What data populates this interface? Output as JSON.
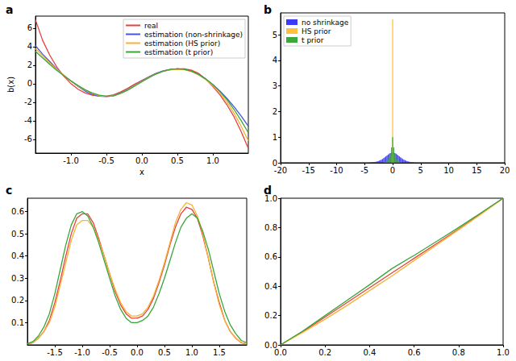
{
  "chart_data": [
    {
      "type": "line",
      "title": "a",
      "x_label": "x",
      "y_label": "b(x)",
      "legend": "upper right",
      "x": [
        -1.5,
        -1.4,
        -1.3,
        -1.2,
        -1.1,
        -1.0,
        -0.9,
        -0.8,
        -0.7,
        -0.6,
        -0.5,
        -0.4,
        -0.3,
        -0.2,
        -0.1,
        0.0,
        0.1,
        0.2,
        0.3,
        0.4,
        0.5,
        0.6,
        0.7,
        0.8,
        0.9,
        1.0,
        1.1,
        1.2,
        1.3,
        1.4,
        1.5
      ],
      "series": [
        {
          "name": "real",
          "color": "#e8413c",
          "values": [
            6.9,
            4.7,
            3.1,
            1.8,
            0.8,
            0.0,
            -0.6,
            -1.0,
            -1.25,
            -1.35,
            -1.35,
            -1.2,
            -0.9,
            -0.5,
            -0.05,
            0.35,
            0.75,
            1.1,
            1.35,
            1.5,
            1.6,
            1.6,
            1.45,
            1.1,
            0.5,
            -0.3,
            -1.2,
            -2.3,
            -3.6,
            -5.2,
            -7.0
          ]
        },
        {
          "name": "estimation (non-shrinkage)",
          "color": "#4a52e0",
          "values": [
            4.1,
            3.2,
            2.4,
            1.6,
            0.9,
            0.3,
            -0.3,
            -0.8,
            -1.15,
            -1.35,
            -1.4,
            -1.3,
            -1.0,
            -0.6,
            -0.15,
            0.3,
            0.75,
            1.1,
            1.4,
            1.55,
            1.6,
            1.55,
            1.35,
            1.0,
            0.5,
            -0.1,
            -0.8,
            -1.6,
            -2.5,
            -3.5,
            -4.6
          ]
        },
        {
          "name": "estimation (HS prior)",
          "color": "#f5b335",
          "values": [
            3.8,
            3.0,
            2.25,
            1.55,
            0.9,
            0.3,
            -0.25,
            -0.7,
            -1.05,
            -1.3,
            -1.4,
            -1.3,
            -1.05,
            -0.65,
            -0.2,
            0.25,
            0.7,
            1.05,
            1.35,
            1.5,
            1.55,
            1.5,
            1.3,
            0.95,
            0.45,
            -0.2,
            -1.0,
            -2.0,
            -3.2,
            -4.6,
            -6.2
          ]
        },
        {
          "name": "estimation (t prior)",
          "color": "#3aa63a",
          "values": [
            3.5,
            2.8,
            2.1,
            1.45,
            0.85,
            0.3,
            -0.2,
            -0.65,
            -1.0,
            -1.25,
            -1.35,
            -1.3,
            -1.05,
            -0.7,
            -0.25,
            0.2,
            0.65,
            1.05,
            1.35,
            1.55,
            1.6,
            1.55,
            1.35,
            1.0,
            0.5,
            -0.1,
            -0.85,
            -1.75,
            -2.8,
            -4.0,
            -5.3
          ]
        }
      ],
      "xlim": [
        -1.5,
        1.5
      ],
      "xticks": [
        {
          "value": -1,
          "label": "-1.0"
        },
        -0.5,
        {
          "value": 0,
          "label": "0.0"
        },
        0.5,
        {
          "value": 1,
          "label": "1.0"
        }
      ],
      "ylim": [
        -7.5,
        7.3
      ],
      "yticks": [
        -6,
        -4,
        -2,
        0,
        2,
        4,
        6
      ]
    },
    {
      "type": "histogram",
      "title": "b",
      "legend": "upper left",
      "bins": [
        -4.1,
        -3.9,
        -3.7,
        -3.5,
        -3.3,
        -3.1,
        -2.9,
        -2.7,
        -2.5,
        -2.3,
        -2.1,
        -1.9,
        -1.7,
        -1.5,
        -1.3,
        -1.1,
        -0.9,
        -0.7,
        -0.5,
        -0.3,
        -0.1,
        0.1,
        0.3,
        0.5,
        0.7,
        0.9,
        1.1,
        1.3,
        1.5,
        1.7,
        1.9,
        2.1,
        2.3,
        2.5,
        2.7,
        2.9,
        3.1,
        3.3,
        3.5,
        3.7,
        3.9,
        4.1
      ],
      "series": [
        {
          "name": "no shrinkage",
          "color": "#3b3bf5",
          "values": [
            0.01,
            0.01,
            0.02,
            0.02,
            0.03,
            0.04,
            0.05,
            0.06,
            0.08,
            0.1,
            0.12,
            0.15,
            0.18,
            0.21,
            0.25,
            0.28,
            0.32,
            0.35,
            0.38,
            0.4,
            0.41,
            0.4,
            0.38,
            0.35,
            0.32,
            0.28,
            0.25,
            0.21,
            0.18,
            0.15,
            0.12,
            0.1,
            0.08,
            0.06,
            0.05,
            0.04,
            0.03,
            0.02,
            0.02,
            0.01,
            0.01
          ]
        },
        {
          "name": "HS prior",
          "color": "#ffbf3f",
          "values": [
            0,
            0,
            0,
            0,
            0,
            0,
            0,
            0,
            0,
            0,
            0,
            0,
            0,
            0,
            0,
            0,
            0,
            0,
            0,
            0.3,
            5.6,
            0.3,
            0,
            0,
            0,
            0,
            0,
            0,
            0,
            0,
            0,
            0,
            0,
            0,
            0,
            0,
            0,
            0,
            0,
            0,
            0
          ]
        },
        {
          "name": "t prior",
          "color": "#3aa83a",
          "values": [
            0,
            0,
            0,
            0,
            0,
            0,
            0,
            0,
            0,
            0,
            0,
            0,
            0.01,
            0.02,
            0.04,
            0.07,
            0.12,
            0.2,
            0.35,
            0.6,
            1.0,
            0.6,
            0.35,
            0.2,
            0.12,
            0.07,
            0.04,
            0.02,
            0.01,
            0,
            0,
            0,
            0,
            0,
            0,
            0,
            0,
            0,
            0,
            0,
            0
          ]
        }
      ],
      "xlim": [
        -20,
        20
      ],
      "xticks": [
        -20,
        -15,
        -10,
        -5,
        0,
        5,
        10,
        15,
        20
      ],
      "ylim": [
        0,
        5.85
      ],
      "yticks": [
        0,
        1,
        2,
        3,
        4,
        5
      ]
    },
    {
      "type": "line",
      "title": "c",
      "x": [
        -2.0,
        -1.9,
        -1.8,
        -1.7,
        -1.6,
        -1.5,
        -1.4,
        -1.3,
        -1.2,
        -1.1,
        -1.0,
        -0.9,
        -0.8,
        -0.7,
        -0.6,
        -0.5,
        -0.4,
        -0.3,
        -0.2,
        -0.1,
        0.0,
        0.1,
        0.2,
        0.3,
        0.4,
        0.5,
        0.6,
        0.7,
        0.8,
        0.9,
        1.0,
        1.1,
        1.2,
        1.3,
        1.4,
        1.5,
        1.6,
        1.7,
        1.8,
        1.9,
        2.0
      ],
      "series": [
        {
          "color": "#e8413c",
          "values": [
            0.005,
            0.01,
            0.03,
            0.06,
            0.11,
            0.19,
            0.29,
            0.4,
            0.5,
            0.57,
            0.59,
            0.59,
            0.55,
            0.48,
            0.4,
            0.32,
            0.24,
            0.18,
            0.14,
            0.12,
            0.12,
            0.13,
            0.16,
            0.21,
            0.28,
            0.36,
            0.45,
            0.53,
            0.59,
            0.62,
            0.61,
            0.57,
            0.49,
            0.39,
            0.28,
            0.19,
            0.11,
            0.06,
            0.03,
            0.01,
            0.005
          ]
        },
        {
          "color": "#f5b335",
          "values": [
            0.005,
            0.01,
            0.03,
            0.06,
            0.1,
            0.17,
            0.27,
            0.37,
            0.47,
            0.54,
            0.56,
            0.56,
            0.53,
            0.47,
            0.4,
            0.32,
            0.25,
            0.19,
            0.15,
            0.13,
            0.13,
            0.14,
            0.17,
            0.22,
            0.29,
            0.37,
            0.46,
            0.55,
            0.61,
            0.64,
            0.63,
            0.58,
            0.5,
            0.39,
            0.28,
            0.18,
            0.11,
            0.06,
            0.03,
            0.01,
            0.005
          ]
        },
        {
          "color": "#3aa63a",
          "values": [
            0.005,
            0.015,
            0.04,
            0.08,
            0.14,
            0.23,
            0.34,
            0.45,
            0.54,
            0.59,
            0.6,
            0.58,
            0.53,
            0.46,
            0.38,
            0.3,
            0.22,
            0.16,
            0.12,
            0.1,
            0.1,
            0.11,
            0.13,
            0.17,
            0.23,
            0.3,
            0.38,
            0.46,
            0.53,
            0.57,
            0.59,
            0.57,
            0.51,
            0.43,
            0.33,
            0.23,
            0.15,
            0.09,
            0.05,
            0.02,
            0.01
          ]
        }
      ],
      "xlim": [
        -2,
        2
      ],
      "xticks": [
        -1.5,
        {
          "value": -1,
          "label": "-1.0"
        },
        -0.5,
        {
          "value": 0,
          "label": "0.0"
        },
        0.5,
        {
          "value": 1,
          "label": "1.0"
        },
        1.5
      ],
      "ylim": [
        0,
        0.66
      ],
      "yticks": [
        0.1,
        0.2,
        0.3,
        0.4,
        0.5,
        0.6
      ]
    },
    {
      "type": "line",
      "title": "d",
      "x": [
        0.0,
        0.1,
        0.2,
        0.3,
        0.4,
        0.5,
        0.6,
        0.7,
        0.8,
        0.9,
        1.0
      ],
      "series": [
        {
          "color": "#e8413c",
          "values": [
            0,
            0.09,
            0.19,
            0.29,
            0.39,
            0.49,
            0.59,
            0.69,
            0.79,
            0.895,
            1
          ]
        },
        {
          "color": "#f5b335",
          "values": [
            0,
            0.085,
            0.175,
            0.27,
            0.37,
            0.47,
            0.575,
            0.68,
            0.785,
            0.89,
            1
          ]
        },
        {
          "color": "#3aa63a",
          "values": [
            0,
            0.095,
            0.2,
            0.305,
            0.41,
            0.52,
            0.61,
            0.705,
            0.8,
            0.9,
            1
          ]
        }
      ],
      "xlim": [
        0,
        1
      ],
      "xticks": [
        {
          "value": 0,
          "label": "0.0"
        },
        0.2,
        0.4,
        0.6,
        0.8,
        {
          "value": 1,
          "label": "1.0"
        }
      ],
      "ylim": [
        0,
        1
      ],
      "yticks": [
        {
          "value": 0,
          "label": "0.0"
        },
        0.2,
        0.4,
        0.6,
        0.8,
        {
          "value": 1,
          "label": "1.0"
        }
      ]
    }
  ]
}
